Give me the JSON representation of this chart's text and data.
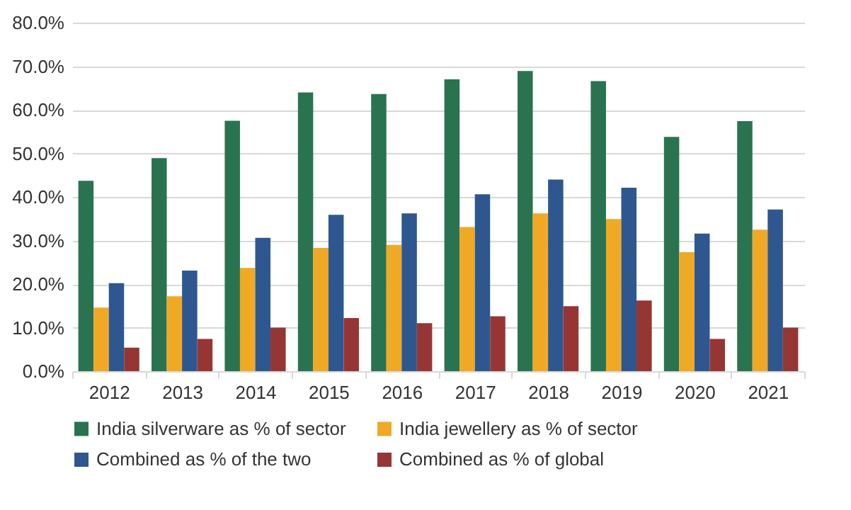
{
  "chart_data": {
    "type": "bar",
    "categories": [
      "2012",
      "2013",
      "2014",
      "2015",
      "2016",
      "2017",
      "2018",
      "2019",
      "2020",
      "2021"
    ],
    "series": [
      {
        "name": "India silverware as % of sector",
        "color": "#2a7350",
        "values": [
          43.7,
          48.9,
          57.5,
          64.0,
          63.6,
          67.0,
          68.9,
          66.6,
          53.8,
          57.4
        ]
      },
      {
        "name": "India jewellery as % of sector",
        "color": "#f0a925",
        "values": [
          14.6,
          17.2,
          23.7,
          28.3,
          29.0,
          33.1,
          36.2,
          34.9,
          27.3,
          32.5
        ]
      },
      {
        "name": "Combined as % of the two",
        "color": "#2e5790",
        "values": [
          20.2,
          23.1,
          30.6,
          35.9,
          36.2,
          40.6,
          44.0,
          42.1,
          31.6,
          37.1
        ]
      },
      {
        "name": "Combined as % of global",
        "color": "#963634",
        "values": [
          5.4,
          7.4,
          10.0,
          12.2,
          11.0,
          12.6,
          14.9,
          16.2,
          7.4,
          10.0
        ]
      }
    ],
    "ylim": [
      0,
      80
    ],
    "yticks": [
      {
        "value": 0,
        "label": "0.0%"
      },
      {
        "value": 10,
        "label": "10.0%"
      },
      {
        "value": 20,
        "label": "20.0%"
      },
      {
        "value": 30,
        "label": "30.0%"
      },
      {
        "value": 40,
        "label": "40.0%"
      },
      {
        "value": 50,
        "label": "50.0%"
      },
      {
        "value": 60,
        "label": "60.0%"
      },
      {
        "value": 70,
        "label": "70.0%"
      },
      {
        "value": 80,
        "label": "80.0%"
      }
    ],
    "grid": "y",
    "legend": "bottom"
  }
}
